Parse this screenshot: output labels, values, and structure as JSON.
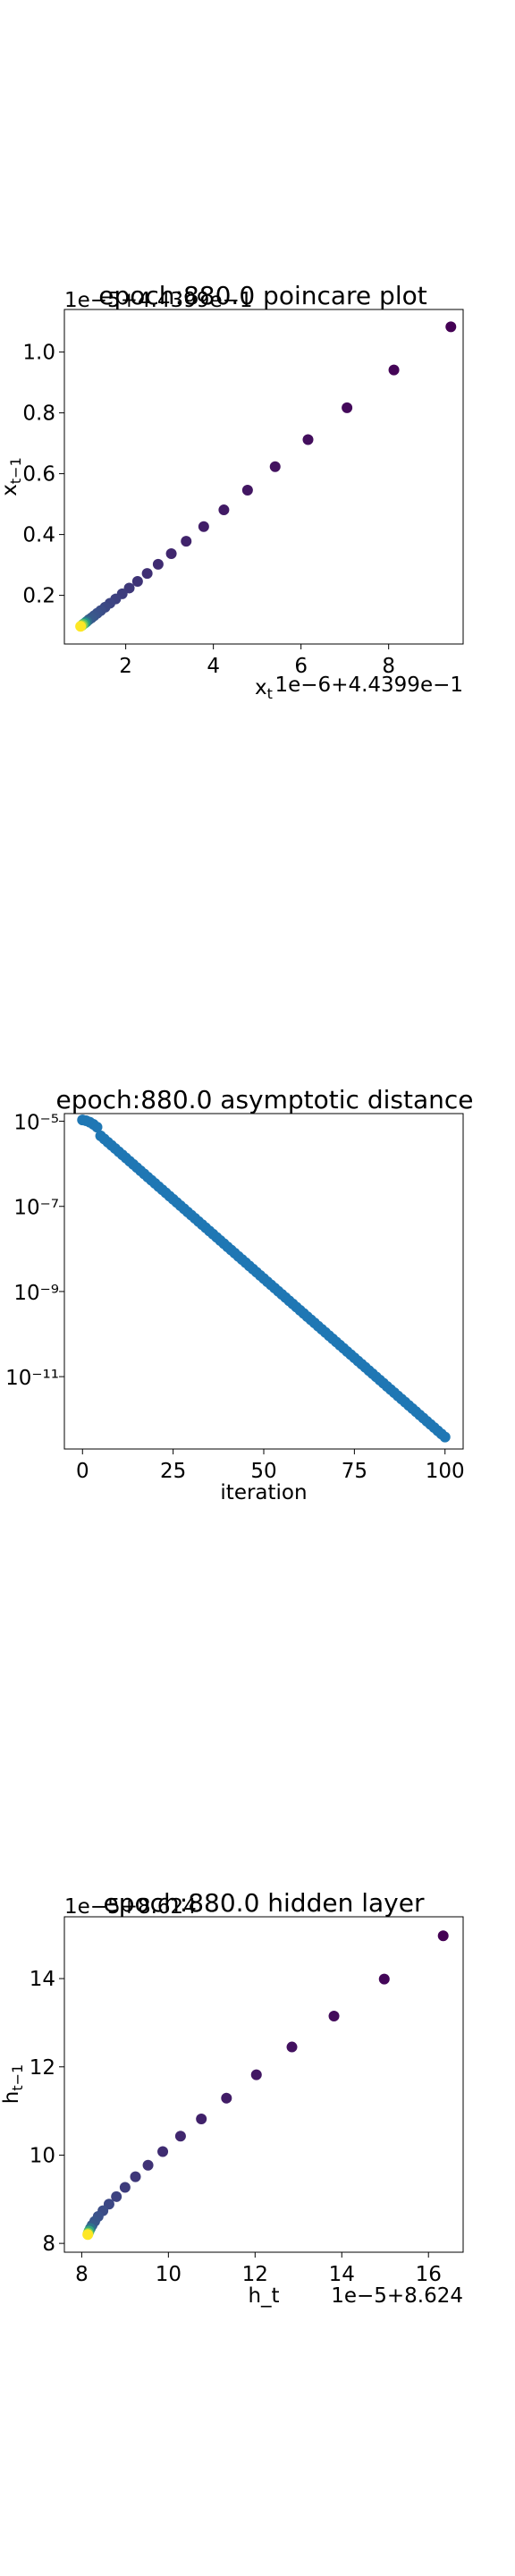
{
  "colors": {
    "dark_point": "#440154",
    "mid_point": "#3b528b",
    "light_point": "#fde725",
    "blue_point": "#1f77b4"
  },
  "chart_data": [
    {
      "type": "scatter",
      "title": "epoch:880.0 poincare plot",
      "xlabel": "x_t",
      "ylabel": "x_{t-1}",
      "x_offset_label": "1e−6+4.4399e−1",
      "y_offset_label": "1e−5+4.4399e−1",
      "x_ticks": [
        "2",
        "4",
        "6",
        "8"
      ],
      "y_ticks": [
        "0.2",
        "0.4",
        "0.6",
        "0.8",
        "1.0"
      ],
      "xlim": [
        0.6,
        9.7
      ],
      "ylim": [
        0.04,
        1.14
      ],
      "grid": false,
      "colormap": "viridis",
      "x": [
        9.42,
        8.12,
        7.05,
        6.16,
        5.41,
        4.78,
        4.24,
        3.78,
        3.38,
        3.04,
        2.74,
        2.49,
        2.27,
        2.08,
        1.92,
        1.77,
        1.64,
        1.53,
        1.43,
        1.35,
        1.28,
        1.22,
        1.16,
        1.11,
        1.07,
        1.03,
        1.0,
        0.97
      ],
      "y": [
        1.083,
        0.941,
        0.817,
        0.712,
        0.623,
        0.546,
        0.481,
        0.426,
        0.378,
        0.337,
        0.302,
        0.272,
        0.246,
        0.224,
        0.205,
        0.188,
        0.174,
        0.161,
        0.15,
        0.141,
        0.133,
        0.126,
        0.12,
        0.114,
        0.109,
        0.105,
        0.101,
        0.098
      ]
    },
    {
      "type": "scatter",
      "title": "epoch:880.0 asymptotic distance",
      "xlabel": "iteration",
      "ylabel": "",
      "x_ticks": [
        "0",
        "25",
        "50",
        "75",
        "100"
      ],
      "y_ticks": [
        "10⁻⁵",
        "10⁻⁷",
        "10⁻⁹",
        "10⁻¹¹"
      ],
      "y_scale": "log",
      "xlim": [
        -5,
        105
      ],
      "ylim_exponent": [
        -12.7,
        -4.82
      ],
      "grid": false,
      "series_rule": "log10(distance) = -4.97 - 0.074*iteration (slight knee near iteration 0-5)",
      "x_range": [
        0,
        100
      ],
      "y_start": 1.1e-05,
      "y_end": 4e-13
    },
    {
      "type": "scatter",
      "title": "epoch:880.0 hidden layer",
      "xlabel": "h_t",
      "ylabel": "h_{t-1}",
      "x_offset_label": "1e−5+8.624",
      "y_offset_label": "1e−5+8.624",
      "x_ticks": [
        "8",
        "10",
        "12",
        "14",
        "16"
      ],
      "y_ticks": [
        "8",
        "10",
        "12",
        "14"
      ],
      "xlim": [
        7.6,
        16.8
      ],
      "ylim": [
        7.8,
        15.4
      ],
      "grid": false,
      "colormap": "viridis",
      "x": [
        16.34,
        14.98,
        13.82,
        12.85,
        12.03,
        11.34,
        10.76,
        10.28,
        9.87,
        9.53,
        9.24,
        9.0,
        8.8,
        8.63,
        8.49,
        8.38,
        8.3,
        8.24,
        8.2,
        8.17,
        8.15,
        8.14
      ],
      "y": [
        14.97,
        13.99,
        13.15,
        12.45,
        11.82,
        11.29,
        10.82,
        10.43,
        10.08,
        9.77,
        9.51,
        9.27,
        9.06,
        8.89,
        8.74,
        8.61,
        8.5,
        8.41,
        8.34,
        8.28,
        8.23,
        8.2
      ]
    }
  ]
}
